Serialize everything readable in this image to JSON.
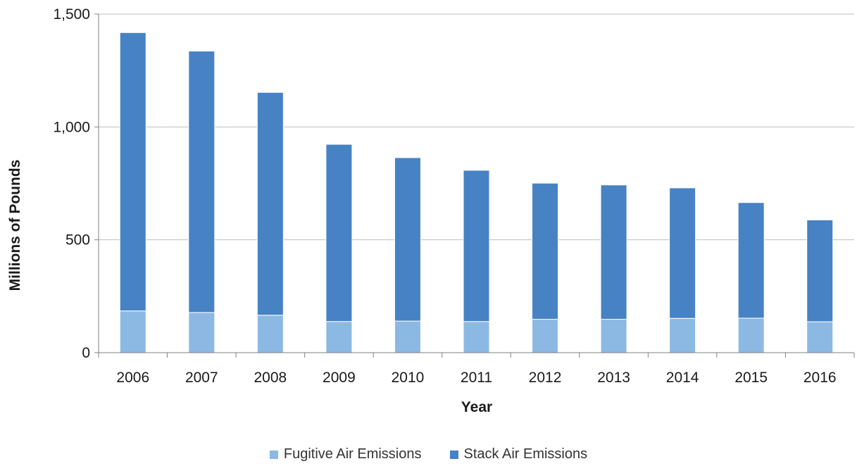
{
  "chart_data": {
    "type": "bar",
    "stacked": true,
    "title": "",
    "xlabel": "Year",
    "ylabel": "Millions of Pounds",
    "categories": [
      "2006",
      "2007",
      "2008",
      "2009",
      "2010",
      "2011",
      "2012",
      "2013",
      "2014",
      "2015",
      "2016"
    ],
    "series": [
      {
        "name": "Fugitive Air Emissions",
        "color": "#8cb9e3",
        "values": [
          185,
          178,
          166,
          138,
          140,
          138,
          148,
          148,
          152,
          153,
          137
        ]
      },
      {
        "name": "Stack Air Emissions",
        "color": "#4682c4",
        "values": [
          1233,
          1158,
          987,
          785,
          724,
          670,
          603,
          595,
          578,
          512,
          451
        ]
      }
    ],
    "ylim": [
      0,
      1500
    ],
    "yticks": [
      0,
      500,
      1000,
      1500
    ],
    "ytick_labels": [
      "0",
      "500",
      "1,000",
      "1,500"
    ],
    "grid": true,
    "legend_position": "bottom"
  }
}
